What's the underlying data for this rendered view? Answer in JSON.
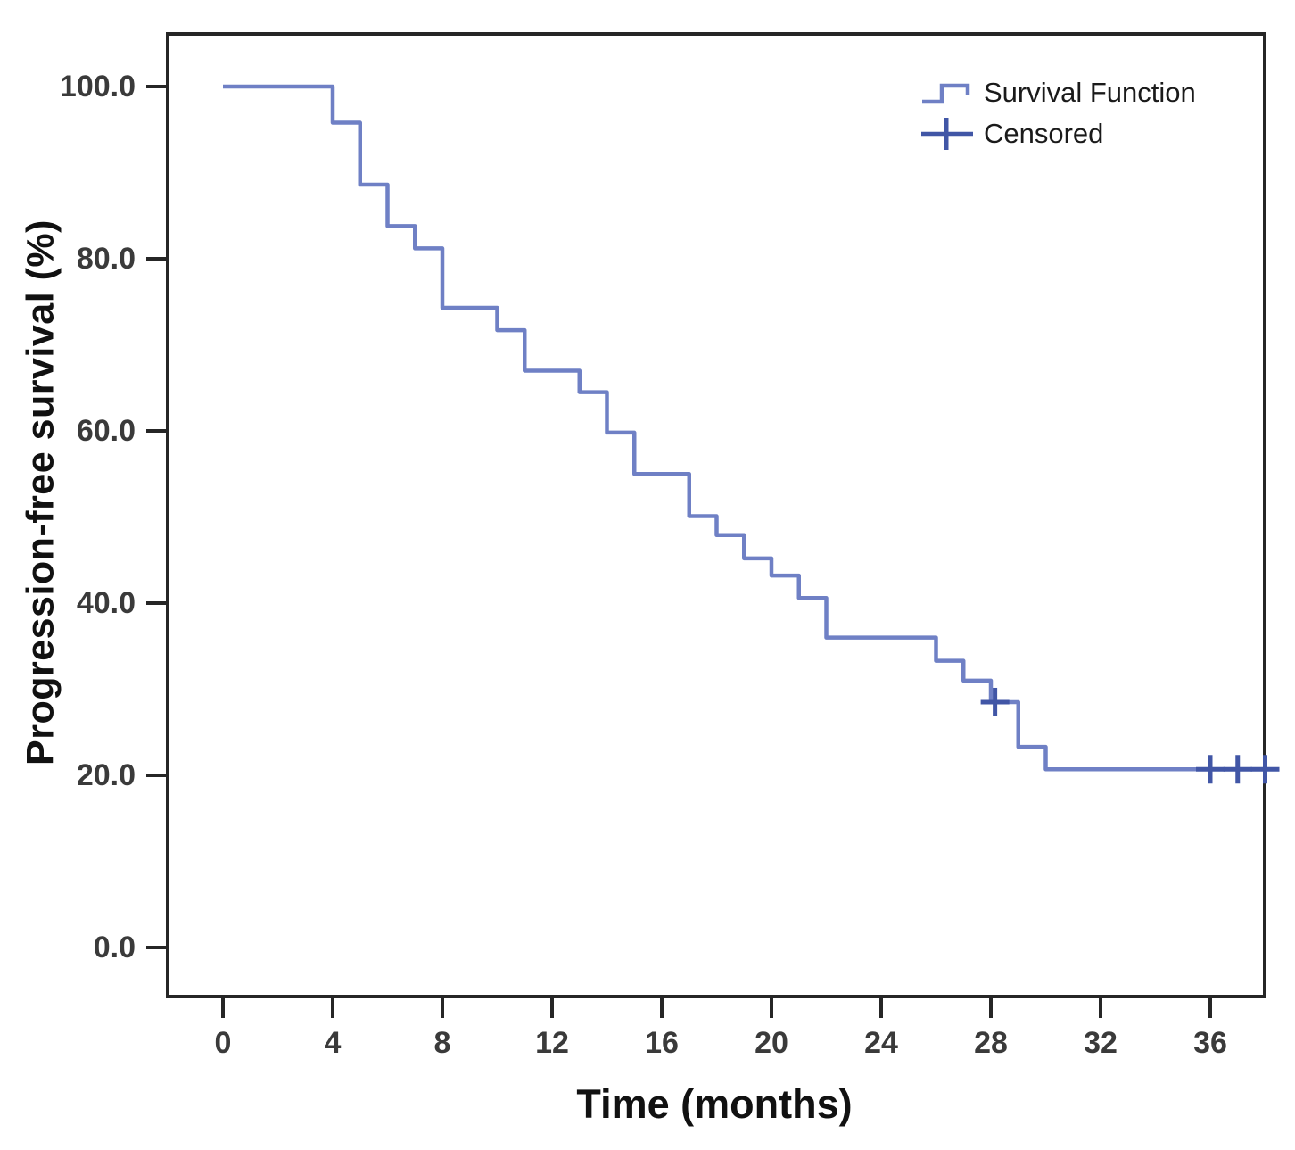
{
  "figure": {
    "background_color": "#ffffff",
    "frame_color": "#262626",
    "tick_label_color": "#3a3a3a"
  },
  "axes": {
    "y_title": "Progression-free survival (%)",
    "x_title": "Time (months)",
    "y_tick_labels": [
      "100.0",
      "80.0",
      "60.0",
      "40.0",
      "20.0",
      "0.0"
    ],
    "y_tick_values": [
      100,
      80,
      60,
      40,
      20,
      0
    ],
    "x_tick_labels": [
      "0",
      "4",
      "8",
      "12",
      "16",
      "20",
      "24",
      "28",
      "32",
      "36"
    ],
    "x_tick_values": [
      0,
      4,
      8,
      12,
      16,
      20,
      24,
      28,
      32,
      36
    ]
  },
  "legend": {
    "items": [
      {
        "label": "Survival Function",
        "glyph": "step-line-icon",
        "color": "#6f80c5"
      },
      {
        "label": "Censored",
        "glyph": "plus-icon",
        "color": "#4156a6"
      }
    ]
  },
  "chart_data": {
    "type": "line",
    "variant": "kaplan_meier_step",
    "title": "",
    "xlabel": "Time (months)",
    "ylabel": "Progression-free survival (%)",
    "xlim": [
      -2,
      38.2
    ],
    "ylim": [
      -5.7,
      106.2
    ],
    "grid": false,
    "legend_position": "top-right-inside",
    "x_ticks": [
      0,
      4,
      8,
      12,
      16,
      20,
      24,
      28,
      32,
      36
    ],
    "y_ticks": [
      0,
      20,
      40,
      60,
      80,
      100
    ],
    "series": [
      {
        "name": "Survival Function",
        "color": "#6f80c5",
        "steps": [
          [
            0,
            100.0
          ],
          [
            4,
            95.8
          ],
          [
            5,
            88.6
          ],
          [
            6,
            83.8
          ],
          [
            7,
            81.2
          ],
          [
            8,
            74.3
          ],
          [
            10,
            71.7
          ],
          [
            11,
            67.0
          ],
          [
            13,
            64.5
          ],
          [
            14,
            59.8
          ],
          [
            15,
            55.0
          ],
          [
            17,
            50.1
          ],
          [
            18,
            47.9
          ],
          [
            19,
            45.2
          ],
          [
            20,
            43.2
          ],
          [
            21,
            40.6
          ],
          [
            22,
            36.0
          ],
          [
            26,
            33.3
          ],
          [
            27,
            31.0
          ],
          [
            28,
            28.5
          ],
          [
            29,
            23.3
          ],
          [
            30,
            20.7
          ]
        ],
        "end_time": 38.1
      }
    ],
    "censored": {
      "name": "Censored",
      "color": "#4156a6",
      "points": [
        [
          28.15,
          28.5
        ],
        [
          36,
          20.7
        ],
        [
          37,
          20.7
        ],
        [
          38,
          20.7
        ]
      ]
    }
  }
}
